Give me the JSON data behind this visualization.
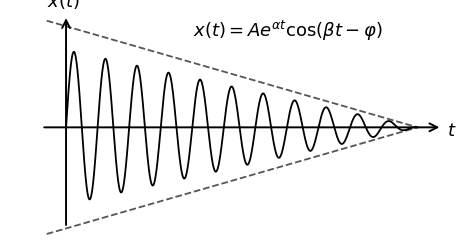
{
  "background_color": "#ffffff",
  "t_start": 0.0,
  "t_end": 10.0,
  "alpha_linear": -0.1,
  "beta": 7.0,
  "phi": 0.0,
  "amplitude": 1.0,
  "formula_fontsize": 13,
  "axis_label_fontsize": 13,
  "line_color": "#000000",
  "dashed_color": "#555555",
  "signal_lw": 1.3,
  "envelope_lw": 1.3,
  "xlim": [
    -0.8,
    11.2
  ],
  "ylim": [
    -1.45,
    1.55
  ],
  "t_axis_end": 10.7,
  "y_axis_top": 1.45,
  "y_axis_bottom": -1.3,
  "env_x_start": -0.55,
  "env_y_start_upper": 1.38,
  "env_x_end": 10.0,
  "env_y_end_upper": 0.0
}
